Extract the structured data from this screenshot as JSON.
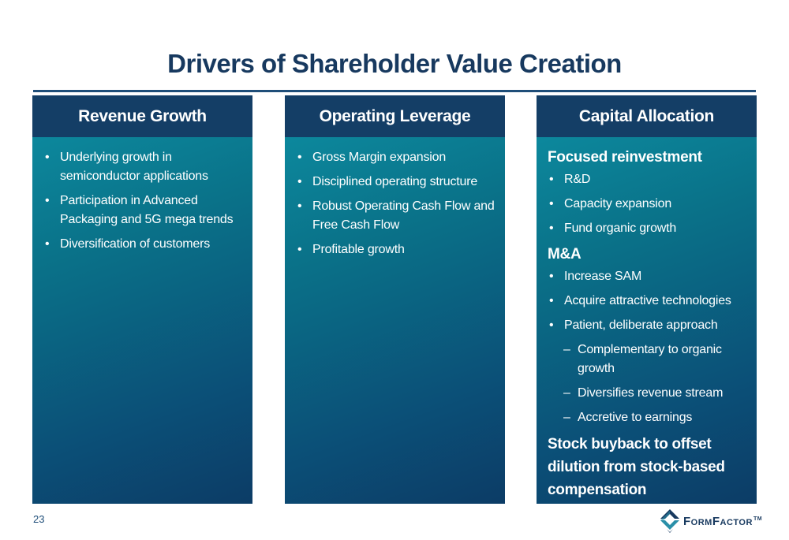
{
  "slide": {
    "title": "Drivers of Shareholder Value Creation",
    "page_number": "23"
  },
  "columns": [
    {
      "heading": "Revenue Growth",
      "bullets": [
        "Underlying growth in semiconductor applications",
        "Participation in Advanced Packaging and 5G mega trends",
        "Diversification of customers"
      ]
    },
    {
      "heading": "Operating Leverage",
      "bullets": [
        "Gross Margin expansion",
        "Disciplined operating structure",
        "Robust Operating Cash Flow and Free Cash Flow",
        "Profitable growth"
      ]
    },
    {
      "heading": "Capital Allocation",
      "reinvestment": {
        "heading": "Focused reinvestment",
        "bullets": [
          "R&D",
          "Capacity expansion",
          "Fund organic growth"
        ]
      },
      "ma": {
        "heading": "M&A",
        "bullets": [
          "Increase SAM",
          "Acquire attractive technologies",
          "Patient, deliberate approach"
        ],
        "sub_bullets": [
          "Complementary to organic growth",
          "Diversifies revenue stream",
          "Accretive to earnings"
        ]
      },
      "closing": "Stock buyback to offset dilution from stock-based compensation"
    }
  ],
  "logo": {
    "first_initial": "F",
    "first_rest": "ORM",
    "second_initial": "F",
    "second_rest": "ACTOR",
    "tm": "TM",
    "icon": "formfactor-logo-icon"
  },
  "colors": {
    "title": "#17395f",
    "header_bar": "#143e66",
    "panel_top": "#0d8fa3",
    "panel_bottom": "#0c3c66"
  }
}
